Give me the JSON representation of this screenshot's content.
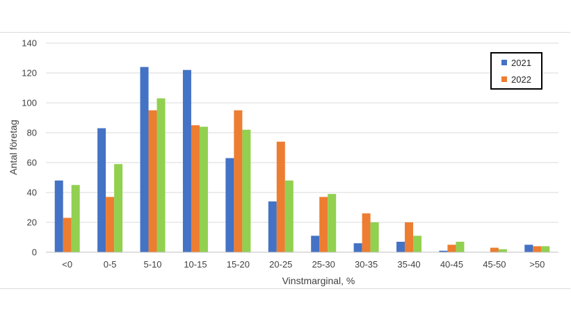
{
  "chart_data": {
    "type": "bar",
    "xlabel": "Vinstmarginal, %",
    "ylabel": "Antal företag",
    "ylim": [
      0,
      140
    ],
    "yticks": [
      0,
      20,
      40,
      60,
      80,
      100,
      120,
      140
    ],
    "grid": true,
    "legend_position": "top-right",
    "categories": [
      "<0",
      "0-5",
      "5-10",
      "10-15",
      "15-20",
      "20-25",
      "25-30",
      "30-35",
      "35-40",
      "40-45",
      "45-50",
      ">50"
    ],
    "series": [
      {
        "name": "2021",
        "color": "#4472c4",
        "values": [
          48,
          83,
          124,
          122,
          63,
          34,
          11,
          6,
          7,
          1,
          0,
          5
        ]
      },
      {
        "name": "2022",
        "color": "#ed7d31",
        "values": [
          23,
          37,
          95,
          85,
          95,
          74,
          37,
          26,
          20,
          5,
          3,
          4
        ]
      },
      {
        "color": "#92d050",
        "values": [
          45,
          59,
          103,
          84,
          82,
          48,
          39,
          20,
          11,
          7,
          2,
          4
        ]
      }
    ]
  }
}
